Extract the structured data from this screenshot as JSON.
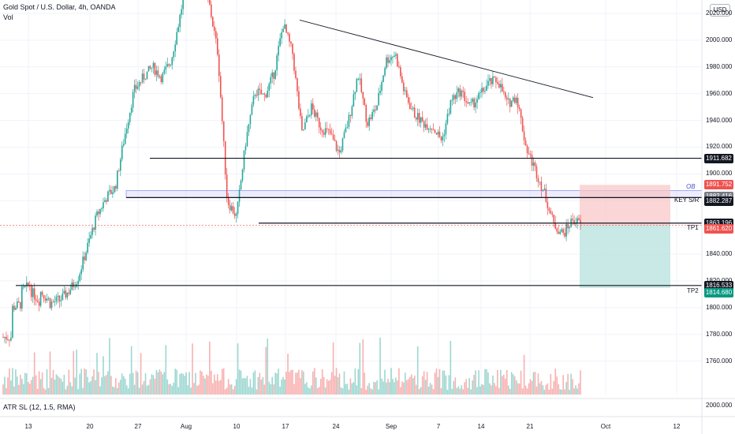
{
  "header": {
    "title": "Gold Spot / U.S. Dollar, 4h, OANDA",
    "volume_label": "Vol",
    "indicator_label": "ATR SL (12, 1.5, RMA)",
    "currency_button": "USD"
  },
  "colors": {
    "up": "#26a69a",
    "down": "#ef5350",
    "level_line": "#131722",
    "ob_zone": "#9598f0",
    "profit_zone": "#b2dfdb",
    "stop_zone": "#f8c4c4"
  },
  "chart_data": {
    "type": "candlestick",
    "x_ticks": [
      "13",
      "20",
      "27",
      "Aug",
      "10",
      "17",
      "24",
      "Sep",
      "7",
      "14",
      "21",
      "Oct",
      "12"
    ],
    "y_ticks": [
      1760,
      1780,
      1800,
      1820,
      1840,
      1860,
      1880,
      1900,
      1920,
      1940,
      1960,
      1980,
      2000,
      2020
    ],
    "y_range": [
      1735,
      2030
    ],
    "indicator_axis_label": "2000.000",
    "price_tags": [
      {
        "value": "1911.682",
        "style": "dark"
      },
      {
        "value": "1891.752",
        "style": "red"
      },
      {
        "value": "1882.416",
        "style": "grey"
      },
      {
        "value": "1882.287",
        "style": "dark"
      },
      {
        "value": "1863.196",
        "style": "dark"
      },
      {
        "value": "1861.620",
        "style": "red"
      },
      {
        "value": "1816.533",
        "style": "dark"
      },
      {
        "value": "1814.680",
        "style": "green"
      }
    ],
    "annotations": [
      "OB",
      "KEY S/R",
      "TP1",
      "TP2"
    ],
    "levels": [
      1911.682,
      1882.287,
      1863.196,
      1816.533
    ],
    "ob_zone": [
      1882.416,
      1887.5
    ],
    "trendline": [
      {
        "x": "18 Aug",
        "y": 2015
      },
      {
        "x": "28 Sep",
        "y": 1957
      }
    ],
    "position": {
      "entry": 1861.62,
      "stop": 1891.752,
      "target": 1814.68
    },
    "price_path": [
      [
        1778,
        1778
      ],
      [
        1800,
        1803
      ],
      [
        1812,
        1818
      ],
      [
        1812,
        1804
      ],
      [
        1812,
        1805
      ],
      [
        1803,
        1806
      ],
      [
        1805,
        1812
      ],
      [
        1812,
        1822
      ],
      [
        1822,
        1845
      ],
      [
        1845,
        1868
      ],
      [
        1868,
        1882
      ],
      [
        1882,
        1890
      ],
      [
        1890,
        1928
      ],
      [
        1928,
        1962
      ],
      [
        1962,
        1972
      ],
      [
        1972,
        1980
      ],
      [
        1980,
        1972
      ],
      [
        1972,
        1985
      ],
      [
        1985,
        2020
      ],
      [
        2020,
        2062
      ],
      [
        2062,
        2050
      ],
      [
        2050,
        2030
      ],
      [
        2030,
        1990
      ],
      [
        1990,
        1880
      ],
      [
        1880,
        1868
      ],
      [
        1868,
        1925
      ],
      [
        1925,
        1962
      ],
      [
        1962,
        1958
      ],
      [
        1958,
        1975
      ],
      [
        1975,
        2012
      ],
      [
        2012,
        1990
      ],
      [
        1990,
        1930
      ],
      [
        1930,
        1950
      ],
      [
        1950,
        1935
      ],
      [
        1935,
        1930
      ],
      [
        1930,
        1915
      ],
      [
        1915,
        1940
      ],
      [
        1940,
        1975
      ],
      [
        1975,
        1938
      ],
      [
        1938,
        1950
      ],
      [
        1950,
        1985
      ],
      [
        1985,
        1990
      ],
      [
        1990,
        1960
      ],
      [
        1960,
        1945
      ],
      [
        1945,
        1938
      ],
      [
        1938,
        1935
      ],
      [
        1935,
        1925
      ],
      [
        1925,
        1955
      ],
      [
        1955,
        1962
      ],
      [
        1962,
        1950
      ],
      [
        1950,
        1958
      ],
      [
        1958,
        1968
      ],
      [
        1968,
        1970
      ],
      [
        1970,
        1952
      ],
      [
        1952,
        1958
      ],
      [
        1958,
        1920
      ],
      [
        1920,
        1903
      ],
      [
        1903,
        1885
      ],
      [
        1885,
        1862
      ],
      [
        1862,
        1855
      ],
      [
        1855,
        1866
      ],
      [
        1866,
        1862
      ]
    ],
    "volume_range": [
      0,
      100
    ]
  }
}
